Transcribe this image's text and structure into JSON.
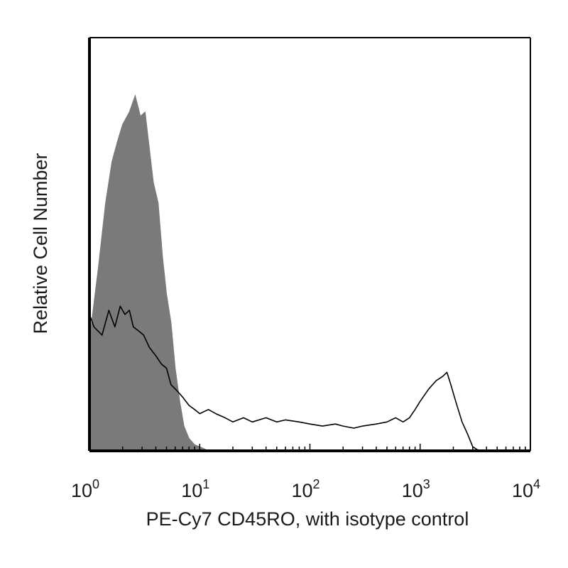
{
  "chart_data": {
    "type": "area",
    "title": "",
    "xlabel": "PE-Cy7 CD45RO, with isotype control",
    "ylabel": "Relative Cell Number",
    "x_scale": "log",
    "xlim": [
      1,
      10000
    ],
    "ylim": [
      0,
      100
    ],
    "x_ticks": [
      {
        "base": "10",
        "exp": "0",
        "value": 1
      },
      {
        "base": "10",
        "exp": "1",
        "value": 10
      },
      {
        "base": "10",
        "exp": "2",
        "value": 100
      },
      {
        "base": "10",
        "exp": "3",
        "value": 1000
      },
      {
        "base": "10",
        "exp": "4",
        "value": 10000
      }
    ],
    "grid": false,
    "legend": "none",
    "colors": {
      "isotype_fill": "#7a7a7a",
      "stained_line": "#000000",
      "axis": "#000000"
    },
    "series": [
      {
        "style": "filled",
        "x": [
          1,
          1.2,
          1.4,
          1.6,
          1.8,
          2.0,
          2.3,
          2.6,
          2.9,
          3.2,
          3.5,
          3.8,
          4.2,
          4.6,
          5.0,
          5.5,
          6.0,
          6.6,
          7.2,
          8.0,
          9.0,
          10.0,
          11.0,
          12.0
        ],
        "y": [
          27,
          44,
          60,
          70,
          75,
          79,
          82,
          86,
          81,
          82,
          73,
          65,
          60,
          47,
          38,
          31,
          20,
          12,
          6,
          3,
          1.5,
          1,
          0.5,
          0
        ]
      },
      {
        "style": "line",
        "x": [
          1,
          1.1,
          1.3,
          1.5,
          1.7,
          1.9,
          2.1,
          2.3,
          2.5,
          2.8,
          3.1,
          3.5,
          4.0,
          4.5,
          5.0,
          5.5,
          6.0,
          6.5,
          7.0,
          8.0,
          9.0,
          10.0,
          12.0,
          14.0,
          17.0,
          20.0,
          25.0,
          30.0,
          40.0,
          50.0,
          60.0,
          80.0,
          100.0,
          130.0,
          170.0,
          200.0,
          250.0,
          300.0,
          400.0,
          500.0,
          600.0,
          700.0,
          800.0,
          900.0,
          1000.0,
          1200.0,
          1400.0,
          1600.0,
          1750.0,
          1900.0,
          2100.0,
          2400.0,
          2700.0,
          3000.0,
          3300.0,
          3600.0,
          4000.0
        ],
        "y": [
          33,
          30,
          28,
          34,
          30,
          35,
          33,
          34,
          30,
          29,
          28,
          25,
          23,
          21,
          20,
          16,
          15,
          14,
          13,
          11,
          10,
          9,
          10,
          9,
          8,
          7,
          8,
          7,
          8,
          7,
          7.5,
          7,
          6.5,
          6,
          6.5,
          6,
          5.5,
          6,
          6.5,
          7,
          8,
          7,
          8,
          10,
          12,
          15,
          17,
          18,
          19,
          16,
          12,
          7,
          4,
          1,
          0.3,
          0,
          0
        ]
      }
    ]
  }
}
